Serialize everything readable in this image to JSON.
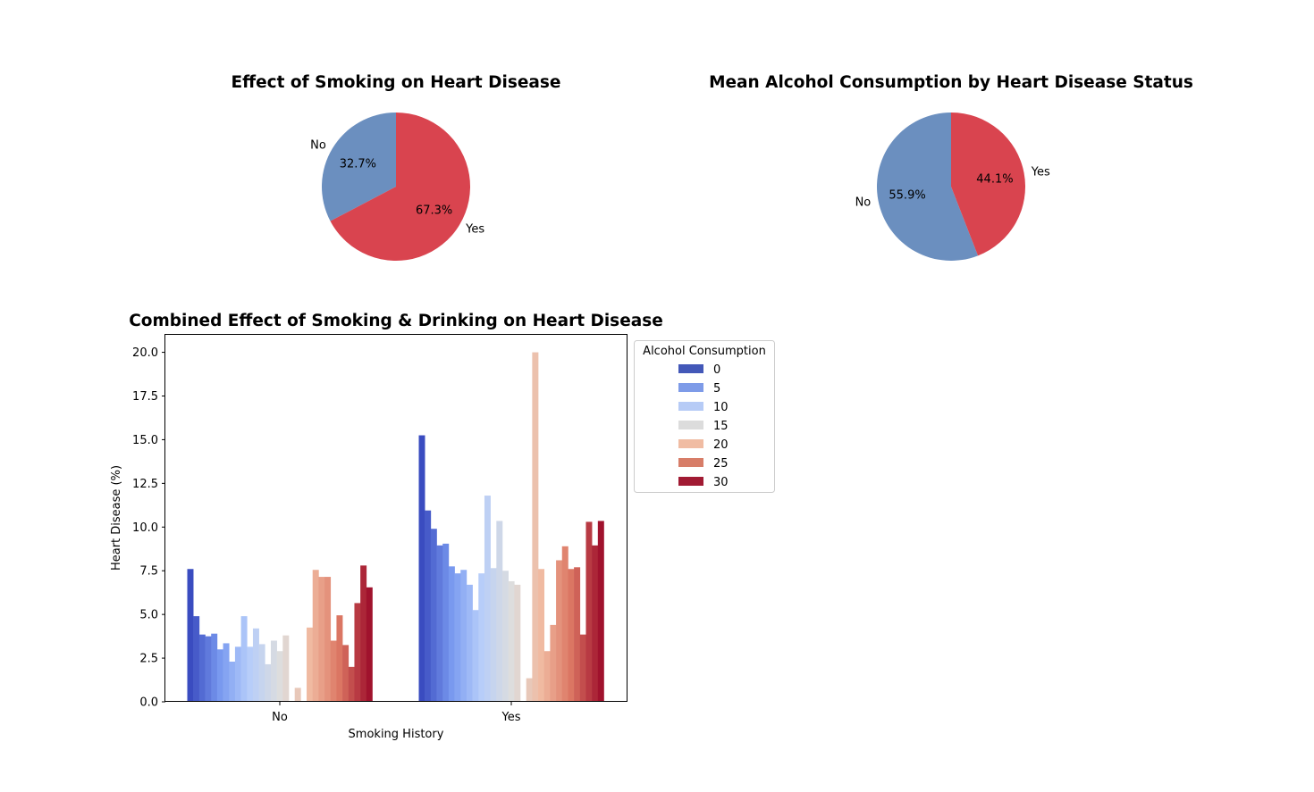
{
  "chart_data": [
    {
      "type": "pie",
      "title": "Effect of Smoking on Heart Disease",
      "labels": [
        "No",
        "Yes"
      ],
      "values": [
        32.7,
        67.3
      ],
      "value_labels": [
        "32.7%",
        "67.3%"
      ],
      "colors": [
        "#6b8fbf",
        "#d9444f"
      ],
      "start_angle_deg": 90
    },
    {
      "type": "pie",
      "title": "Mean Alcohol Consumption by Heart Disease Status",
      "labels": [
        "No",
        "Yes"
      ],
      "values": [
        55.9,
        44.1
      ],
      "value_labels": [
        "55.9%",
        "44.1%"
      ],
      "colors": [
        "#6b8fbf",
        "#d9444f"
      ],
      "start_angle_deg": 90
    },
    {
      "type": "bar",
      "title": "Combined Effect of Smoking & Drinking on Heart Disease",
      "xlabel": "Smoking History",
      "ylabel": "Heart Disease (%)",
      "categories": [
        "No",
        "Yes"
      ],
      "ylim": [
        0,
        21
      ],
      "yticks": [
        "0.0",
        "2.5",
        "5.0",
        "7.5",
        "10.0",
        "12.5",
        "15.0",
        "17.5",
        "20.0"
      ],
      "bar_values": {
        "No": [
          7.6,
          4.9,
          3.85,
          3.75,
          3.9,
          3.0,
          3.35,
          2.3,
          3.15,
          4.9,
          3.15,
          4.2,
          3.3,
          2.15,
          3.5,
          2.9,
          3.8,
          0.0,
          0.8,
          0.0,
          4.25,
          7.55,
          7.15,
          7.15,
          3.5,
          4.95,
          3.25,
          2.0,
          5.65,
          7.8,
          6.55
        ],
        "Yes": [
          15.25,
          10.95,
          9.9,
          8.95,
          9.05,
          7.75,
          7.35,
          7.55,
          6.7,
          5.25,
          7.35,
          11.8,
          7.65,
          10.35,
          7.5,
          6.9,
          6.7,
          0.0,
          1.35,
          20.0,
          7.6,
          2.9,
          4.4,
          8.1,
          8.9,
          7.6,
          7.7,
          3.85,
          10.3,
          8.95,
          10.35
        ]
      },
      "legend": {
        "title": "Alcohol Consumption",
        "placement": "outside-right-top",
        "entries": [
          {
            "label": "0",
            "color": "#4358b8"
          },
          {
            "label": "5",
            "color": "#7e9be8"
          },
          {
            "label": "10",
            "color": "#b6cbf6"
          },
          {
            "label": "15",
            "color": "#dcdcdc"
          },
          {
            "label": "20",
            "color": "#f0bca3"
          },
          {
            "label": "25",
            "color": "#d77d68"
          },
          {
            "label": "30",
            "color": "#a11a33"
          }
        ]
      }
    }
  ]
}
